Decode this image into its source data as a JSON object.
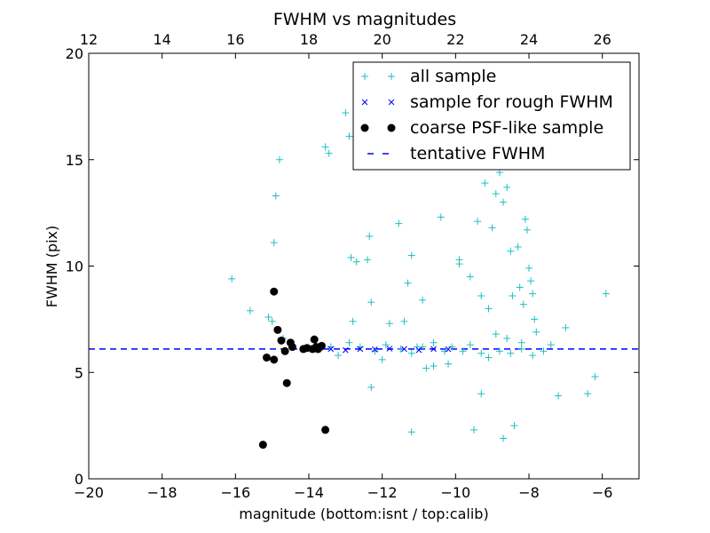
{
  "chart_data": {
    "type": "scatter",
    "title": "FWHM vs magnitudes",
    "xlabel": "magnitude (bottom:isnt / top:calib)",
    "ylabel": "FWHM (pix)",
    "xlim": [
      -20,
      -5
    ],
    "ylim": [
      0,
      20
    ],
    "top_xlim": [
      12,
      27
    ],
    "x_ticks": [
      -20,
      -18,
      -16,
      -14,
      -12,
      -10,
      -8,
      -6
    ],
    "x_tick_labels": [
      "−20",
      "−18",
      "−16",
      "−14",
      "−12",
      "−10",
      "−8",
      "−6"
    ],
    "top_ticks": [
      12,
      14,
      16,
      18,
      20,
      22,
      24,
      26
    ],
    "top_tick_labels": [
      "12",
      "14",
      "16",
      "18",
      "20",
      "22",
      "24",
      "26"
    ],
    "y_ticks": [
      0,
      5,
      10,
      15,
      20
    ],
    "y_tick_labels": [
      "0",
      "5",
      "10",
      "15",
      "20"
    ],
    "grid": false,
    "legend_position": "top-right",
    "tentative_fwhm": 6.1,
    "series": [
      {
        "name": "all sample",
        "marker": "plus",
        "color": "#1fbfbf",
        "points": [
          [
            -16.1,
            9.4
          ],
          [
            -15.6,
            7.9
          ],
          [
            -15.1,
            7.6
          ],
          [
            -15.0,
            7.4
          ],
          [
            -14.95,
            11.1
          ],
          [
            -14.9,
            13.3
          ],
          [
            -14.8,
            15.0
          ],
          [
            -14.7,
            6.6
          ],
          [
            -13.55,
            15.6
          ],
          [
            -13.45,
            15.3
          ],
          [
            -13.0,
            17.2
          ],
          [
            -12.9,
            16.1
          ],
          [
            -12.85,
            10.4
          ],
          [
            -12.7,
            10.2
          ],
          [
            -12.4,
            10.3
          ],
          [
            -12.35,
            11.4
          ],
          [
            -12.3,
            8.3
          ],
          [
            -12.3,
            4.3
          ],
          [
            -11.55,
            12.0
          ],
          [
            -11.3,
            9.2
          ],
          [
            -11.2,
            10.5
          ],
          [
            -11.2,
            2.2
          ],
          [
            -11.05,
            6.2
          ],
          [
            -10.4,
            12.3
          ],
          [
            -10.1,
            6.2
          ],
          [
            -9.9,
            10.3
          ],
          [
            -9.9,
            10.1
          ],
          [
            -9.6,
            9.5
          ],
          [
            -9.4,
            12.1
          ],
          [
            -9.3,
            8.6
          ],
          [
            -9.2,
            13.9
          ],
          [
            -9.1,
            8.0
          ],
          [
            -9.0,
            11.8
          ],
          [
            -8.9,
            13.4
          ],
          [
            -8.8,
            14.4
          ],
          [
            -8.7,
            13.0
          ],
          [
            -8.6,
            13.7
          ],
          [
            -8.5,
            10.7
          ],
          [
            -8.45,
            8.6
          ],
          [
            -8.3,
            10.9
          ],
          [
            -8.25,
            9.0
          ],
          [
            -8.15,
            8.2
          ],
          [
            -8.1,
            12.2
          ],
          [
            -8.05,
            11.7
          ],
          [
            -8.0,
            9.9
          ],
          [
            -7.95,
            9.3
          ],
          [
            -7.9,
            8.7
          ],
          [
            -7.85,
            7.5
          ],
          [
            -7.8,
            6.9
          ],
          [
            -8.2,
            6.4
          ],
          [
            -8.6,
            6.6
          ],
          [
            -8.9,
            6.8
          ],
          [
            -9.5,
            2.3
          ],
          [
            -8.7,
            1.9
          ],
          [
            -8.4,
            2.5
          ],
          [
            -9.3,
            4.0
          ],
          [
            -7.0,
            7.1
          ],
          [
            -6.2,
            4.8
          ],
          [
            -6.4,
            4.0
          ],
          [
            -5.9,
            8.7
          ],
          [
            -7.2,
            3.9
          ],
          [
            -10.8,
            5.2
          ],
          [
            -10.6,
            5.3
          ],
          [
            -9.8,
            6.0
          ],
          [
            -9.6,
            6.3
          ],
          [
            -9.3,
            5.9
          ],
          [
            -9.1,
            5.7
          ],
          [
            -8.8,
            6.0
          ],
          [
            -8.5,
            5.9
          ],
          [
            -8.2,
            6.1
          ],
          [
            -7.9,
            5.8
          ],
          [
            -7.6,
            6.0
          ],
          [
            -7.4,
            6.3
          ],
          [
            -12.9,
            6.4
          ],
          [
            -12.6,
            6.2
          ],
          [
            -12.2,
            6.0
          ],
          [
            -11.9,
            6.3
          ],
          [
            -11.5,
            6.1
          ],
          [
            -11.2,
            5.9
          ],
          [
            -10.9,
            6.2
          ],
          [
            -10.6,
            6.4
          ],
          [
            -10.3,
            6.0
          ],
          [
            -13.2,
            5.8
          ],
          [
            -13.4,
            6.2
          ],
          [
            -12.8,
            7.4
          ],
          [
            -11.8,
            7.3
          ],
          [
            -11.4,
            7.4
          ],
          [
            -10.9,
            8.4
          ],
          [
            -12.0,
            5.6
          ],
          [
            -10.2,
            5.4
          ]
        ]
      },
      {
        "name": "sample for rough FWHM",
        "marker": "x",
        "color": "#0000ff",
        "points": [
          [
            -14.0,
            6.1
          ],
          [
            -13.7,
            6.15
          ],
          [
            -13.4,
            6.1
          ],
          [
            -13.0,
            6.05
          ],
          [
            -12.6,
            6.1
          ],
          [
            -12.2,
            6.08
          ],
          [
            -11.8,
            6.12
          ],
          [
            -11.4,
            6.1
          ],
          [
            -11.0,
            6.05
          ],
          [
            -10.6,
            6.1
          ],
          [
            -10.2,
            6.09
          ]
        ]
      },
      {
        "name": "coarse PSF-like sample",
        "marker": "circle",
        "color": "#000000",
        "points": [
          [
            -15.25,
            1.6
          ],
          [
            -15.15,
            5.7
          ],
          [
            -14.95,
            5.6
          ],
          [
            -14.95,
            8.8
          ],
          [
            -14.85,
            7.0
          ],
          [
            -14.75,
            6.5
          ],
          [
            -14.65,
            6.0
          ],
          [
            -14.6,
            4.5
          ],
          [
            -14.5,
            6.4
          ],
          [
            -14.45,
            6.2
          ],
          [
            -14.15,
            6.1
          ],
          [
            -14.05,
            6.15
          ],
          [
            -13.9,
            6.1
          ],
          [
            -13.85,
            6.55
          ],
          [
            -13.8,
            6.2
          ],
          [
            -13.75,
            6.1
          ],
          [
            -13.65,
            6.25
          ],
          [
            -13.55,
            2.3
          ]
        ]
      },
      {
        "name": "tentative FWHM",
        "marker": "dashed-line",
        "color": "#0000ff"
      }
    ]
  }
}
